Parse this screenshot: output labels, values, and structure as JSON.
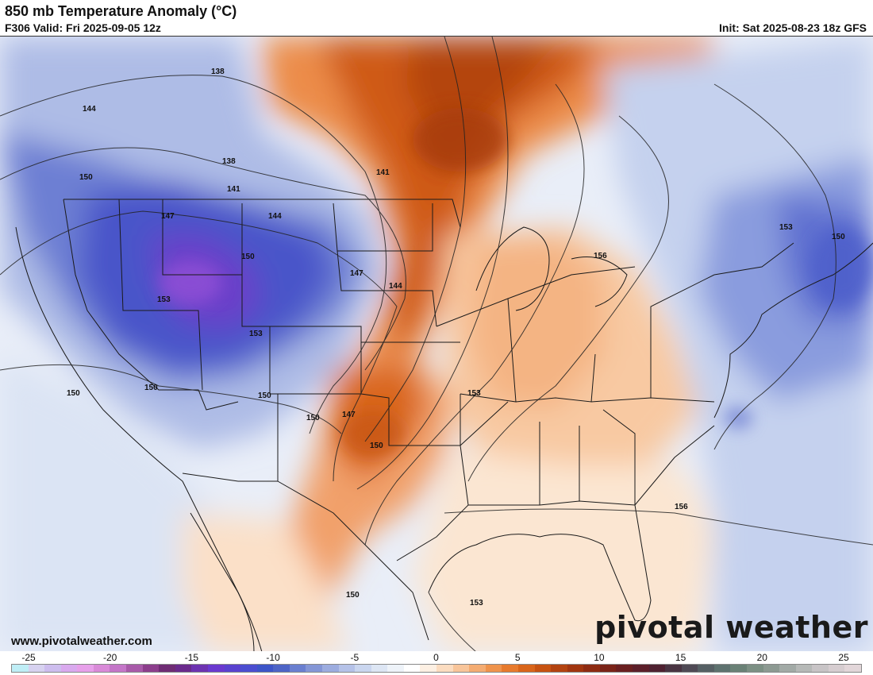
{
  "header": {
    "title": "850 mb Temperature Anomaly (°C)",
    "valid": "F306 Valid: Fri 2025-09-05 12z",
    "init": "Init: Sat 2025-08-23 18z GFS"
  },
  "map": {
    "contour_labels": [
      "138",
      "144",
      "150",
      "138",
      "141",
      "147",
      "144",
      "150",
      "153",
      "153",
      "150",
      "150",
      "150",
      "147",
      "150",
      "150",
      "153",
      "141",
      "144",
      "147",
      "156",
      "153",
      "150",
      "156",
      "153",
      "150"
    ]
  },
  "footer": {
    "website": "www.pivotalweather.com",
    "brand": "pivotal weather"
  },
  "legend": {
    "ticks": [
      "-25",
      "-20",
      "-15",
      "-10",
      "-5",
      "0",
      "5",
      "10",
      "15",
      "20",
      "25"
    ],
    "colors": [
      "#bfeef6",
      "#d7d2f0",
      "#cdbdee",
      "#d9a9ee",
      "#e7a0ea",
      "#d98ad8",
      "#c476c8",
      "#a85aa9",
      "#8c3e8c",
      "#6f2c74",
      "#6a2a8c",
      "#6d33b1",
      "#6a39cf",
      "#5942cf",
      "#4b4dd0",
      "#3d55c8",
      "#4d64c6",
      "#6a7fd0",
      "#8496d6",
      "#9cacdf",
      "#b5c2e8",
      "#cad6ef",
      "#dde6f4",
      "#eef3f9",
      "#ffffff",
      "#fdf0e3",
      "#fbdcc0",
      "#f8c59a",
      "#f4ac72",
      "#ef934c",
      "#e77a2d",
      "#d9651a",
      "#c75211",
      "#b34310",
      "#a1350f",
      "#8e2b12",
      "#7a2318",
      "#6a1f20",
      "#5c1f2a",
      "#4f2131",
      "#493442",
      "#4f4a55",
      "#566064",
      "#5e726f",
      "#6a8176",
      "#7c9084",
      "#8d9a92",
      "#a2aaa6",
      "#b6b9b7",
      "#c8c4c6",
      "#d6cdd0",
      "#e2d6d9"
    ]
  }
}
